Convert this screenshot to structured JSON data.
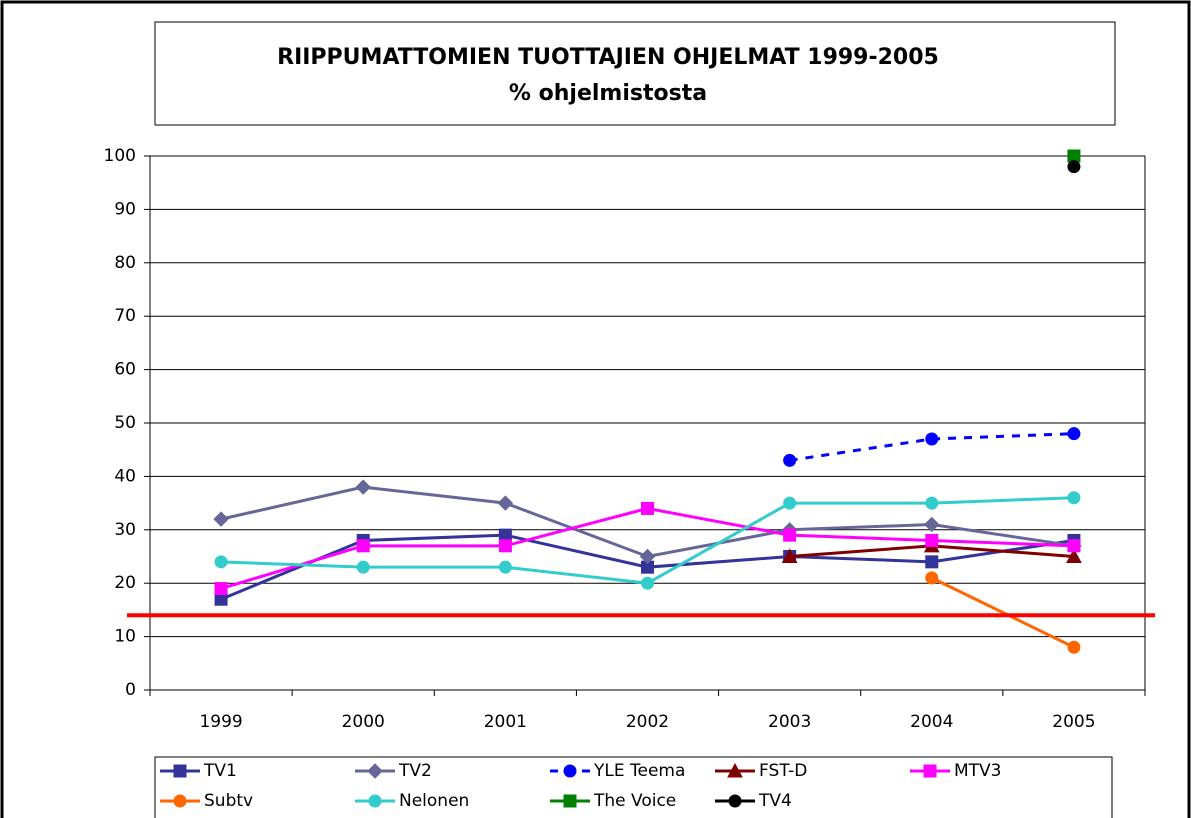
{
  "chart_data": {
    "type": "line",
    "title": "RIIPPUMATTOMIEN TUOTTAJIEN OHJELMAT 1999-2005",
    "subtitle": "% ohjelmistosta",
    "categories": [
      "1999",
      "2000",
      "2001",
      "2002",
      "2003",
      "2004",
      "2005"
    ],
    "series": [
      {
        "name": "TV1",
        "color": "#333399",
        "marker": "square",
        "values": [
          17,
          28,
          29,
          23,
          25,
          24,
          28
        ]
      },
      {
        "name": "TV2",
        "color": "#666699",
        "marker": "diamond",
        "values": [
          32,
          38,
          35,
          25,
          30,
          31,
          27
        ]
      },
      {
        "name": "YLE Teema",
        "color": "#0000ff",
        "marker": "circle",
        "dashed": true,
        "values": [
          null,
          null,
          null,
          null,
          43,
          47,
          48
        ]
      },
      {
        "name": "FST-D",
        "color": "#800000",
        "marker": "triangle",
        "values": [
          null,
          null,
          null,
          null,
          25,
          27,
          25
        ]
      },
      {
        "name": "MTV3",
        "color": "#ff00ff",
        "marker": "square",
        "values": [
          19,
          27,
          27,
          34,
          29,
          28,
          27
        ]
      },
      {
        "name": "Subtv",
        "color": "#ff6600",
        "marker": "circle",
        "values": [
          null,
          null,
          null,
          null,
          null,
          21,
          8
        ]
      },
      {
        "name": "Nelonen",
        "color": "#33cccc",
        "marker": "circle",
        "values": [
          24,
          23,
          23,
          20,
          35,
          35,
          36
        ]
      },
      {
        "name": "The Voice",
        "color": "#008000",
        "marker": "square",
        "values": [
          null,
          null,
          null,
          null,
          null,
          null,
          100
        ]
      },
      {
        "name": "TV4",
        "color": "#000000",
        "marker": "circle",
        "values": [
          null,
          null,
          null,
          null,
          null,
          null,
          98
        ]
      }
    ],
    "reference_line": {
      "value": 14,
      "color": "#ff0000"
    },
    "ylim": [
      0,
      100
    ],
    "yticks": [
      0,
      10,
      20,
      30,
      40,
      50,
      60,
      70,
      80,
      90,
      100
    ],
    "grid": true
  }
}
